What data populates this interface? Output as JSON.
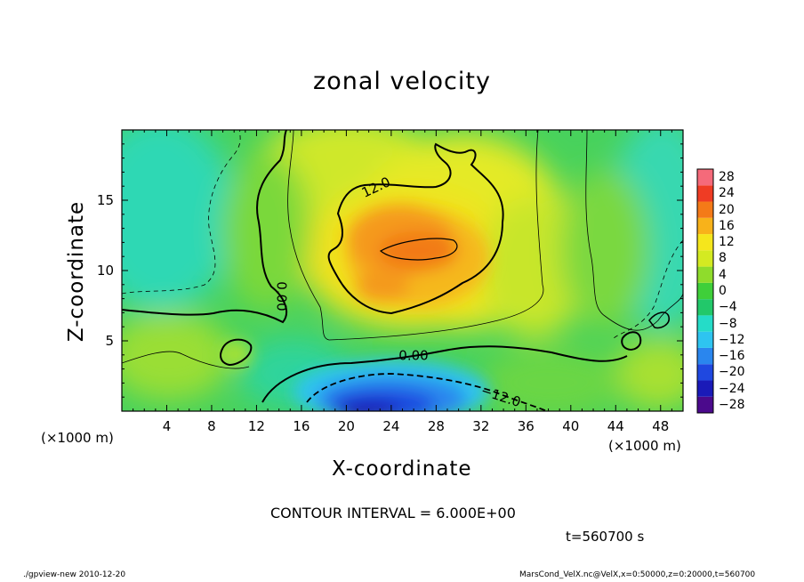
{
  "chart_data": {
    "type": "heatmap",
    "title": "zonal velocity",
    "xlabel": "X-coordinate",
    "ylabel": "Z-coordinate",
    "x_unit_left": "(×1000 m)",
    "x_unit_right": "(×1000 m)",
    "xlim": [
      0,
      50
    ],
    "ylim": [
      0,
      20
    ],
    "x_ticks": [
      4,
      8,
      12,
      16,
      20,
      24,
      28,
      32,
      36,
      40,
      44,
      48
    ],
    "x_tick_labels": [
      "4",
      "8",
      "12",
      "16",
      "20",
      "24",
      "28",
      "32",
      "36",
      "40",
      "44",
      "48"
    ],
    "y_ticks": [
      5,
      10,
      15
    ],
    "y_tick_labels": [
      "5",
      "10",
      "15"
    ],
    "colorbar": {
      "levels": [
        -28,
        -24,
        -20,
        -16,
        -12,
        -8,
        -4,
        0,
        4,
        8,
        12,
        16,
        20,
        24,
        28
      ],
      "labels": [
        "28",
        "24",
        "20",
        "16",
        "12",
        "8",
        "4",
        "0",
        "−4",
        "−8",
        "−12",
        "−16",
        "−20",
        "−24",
        "−28"
      ],
      "colors": [
        "#4b0a8c",
        "#1a1ab8",
        "#1f48e0",
        "#2a86ee",
        "#2ec4f0",
        "#25dcc8",
        "#22c86a",
        "#3fcf3a",
        "#8fdc2c",
        "#d4ea22",
        "#f5e61c",
        "#f8b21a",
        "#f47a18",
        "#ef3c24",
        "#f56a7a"
      ]
    },
    "contour_labels": [
      "12.0",
      "0.00",
      "0.00",
      "−12.0"
    ],
    "contour_interval": "CONTOUR INTERVAL = 6.000E+00",
    "grid": false
  },
  "annotations": {
    "time": "t=560700  s",
    "footer_left": "./gpview-new  2010-12-20",
    "footer_right": "MarsCond_VelX.nc@VelX,x=0:50000,z=0:20000,t=560700"
  }
}
